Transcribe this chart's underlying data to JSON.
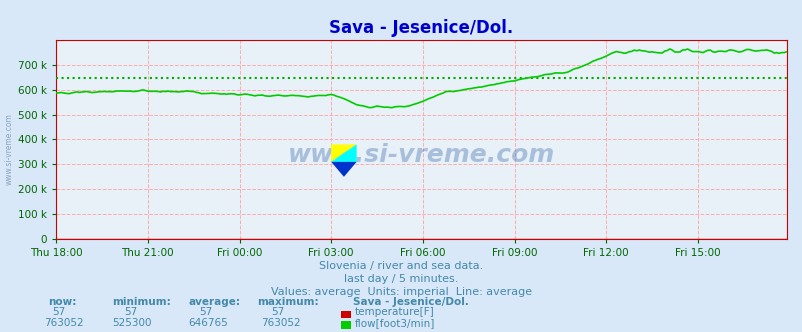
{
  "title": "Sava - Jesenice/Dol.",
  "bg_color": "#d8e8f8",
  "plot_bg_color": "#e8f0f8",
  "grid_color_minor": "#f0a0a0",
  "title_color": "#0000cc",
  "text_color": "#4488aa",
  "watermark": "www.si-vreme.com",
  "watermark_color": "#3366aa",
  "xlabel_texts": [
    "Thu 18:00",
    "Thu 21:00",
    "Fri 00:00",
    "Fri 03:00",
    "Fri 06:00",
    "Fri 09:00",
    "Fri 12:00",
    "Fri 15:00"
  ],
  "flow_color": "#00cc00",
  "temp_color": "#cc0000",
  "avg_line_color": "#00aa00",
  "avg_line_value": 646765,
  "ymax": 800000,
  "ymin": 0,
  "subtitle1": "Slovenia / river and sea data.",
  "subtitle2": "last day / 5 minutes.",
  "subtitle3": "Values: average  Units: imperial  Line: average",
  "legend_title": "Sava - Jesenice/Dol.",
  "temp_now": 57,
  "temp_min": 57,
  "temp_avg": 57,
  "temp_max": 57,
  "flow_now": 763052,
  "flow_min": 525300,
  "flow_avg": 646765,
  "flow_max": 763052
}
